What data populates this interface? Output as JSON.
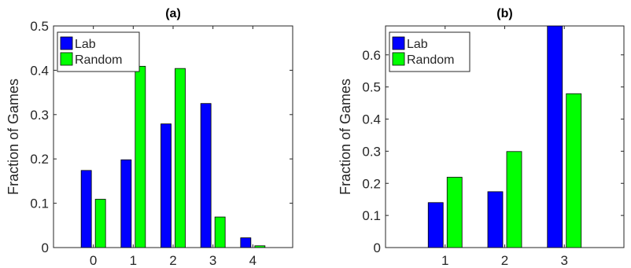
{
  "chart_data": [
    {
      "type": "bar",
      "title": "(a)",
      "ylabel": "Fraction of Games",
      "xlabel": "",
      "categories": [
        "0",
        "1",
        "2",
        "3",
        "4"
      ],
      "xlim": [
        -1,
        5
      ],
      "ylim": [
        0,
        0.5
      ],
      "yticks": [
        0,
        0.1,
        0.2,
        0.3,
        0.4,
        0.5
      ],
      "ytick_labels": [
        "0",
        "0.1",
        "0.2",
        "0.3",
        "0.4",
        "0.5"
      ],
      "series": [
        {
          "name": "Lab",
          "color": "#0000ff",
          "values": [
            0.174,
            0.198,
            0.279,
            0.325,
            0.022
          ]
        },
        {
          "name": "Random",
          "color": "#00ff00",
          "values": [
            0.109,
            0.409,
            0.404,
            0.069,
            0.004
          ]
        }
      ],
      "legend": "top-left"
    },
    {
      "type": "bar",
      "title": "(b)",
      "ylabel": "Fraction of Games",
      "xlabel": "",
      "categories": [
        "1",
        "2",
        "3"
      ],
      "xlim": [
        0,
        4
      ],
      "ylim": [
        0,
        0.69
      ],
      "yticks": [
        0,
        0.1,
        0.2,
        0.3,
        0.4,
        0.5,
        0.6
      ],
      "ytick_labels": [
        "0",
        "0.1",
        "0.2",
        "0.3",
        "0.4",
        "0.5",
        "0.6"
      ],
      "series": [
        {
          "name": "Lab",
          "color": "#0000ff",
          "values": [
            0.14,
            0.174,
            0.69
          ]
        },
        {
          "name": "Random",
          "color": "#00ff00",
          "values": [
            0.219,
            0.299,
            0.479
          ]
        }
      ],
      "legend": "top-left"
    }
  ]
}
